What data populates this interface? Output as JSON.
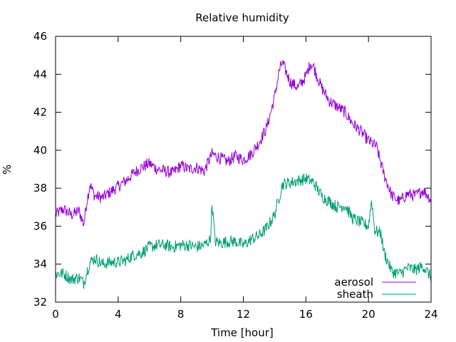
{
  "chart_data": {
    "type": "line",
    "title": "Relative humidity",
    "xlabel": "Time [hour]",
    "ylabel": "%",
    "xlim": [
      0,
      24
    ],
    "ylim": [
      32,
      46
    ],
    "xticks": [
      0,
      4,
      8,
      12,
      16,
      20,
      24
    ],
    "yticks": [
      32,
      34,
      36,
      38,
      40,
      42,
      44,
      46
    ],
    "grid": false,
    "legend_position": "bottom-right",
    "series": [
      {
        "name": "aerosol",
        "color": "#9400d3",
        "x": [
          0,
          0.5,
          1,
          1.5,
          1.8,
          2,
          2.2,
          2.5,
          3,
          3.5,
          4,
          4.5,
          5,
          5.5,
          6,
          6.5,
          7,
          7.5,
          8,
          8.5,
          9,
          9.5,
          10,
          10.5,
          11,
          11.5,
          12,
          12.5,
          13,
          13.5,
          14,
          14.3,
          14.5,
          14.8,
          15,
          15.5,
          16,
          16.3,
          16.5,
          16.8,
          17,
          17.5,
          18,
          18.5,
          19,
          19.5,
          20,
          20.5,
          21,
          21.5,
          22,
          22.5,
          23,
          23.5,
          24
        ],
        "y": [
          36.6,
          36.9,
          36.6,
          36.8,
          36.1,
          37.3,
          38.2,
          37.6,
          37.5,
          37.8,
          38.1,
          38.4,
          38.8,
          39.1,
          39.3,
          39.0,
          38.9,
          38.8,
          39.2,
          39.0,
          39.1,
          38.9,
          39.8,
          39.6,
          39.4,
          39.7,
          39.5,
          39.8,
          40.4,
          41.2,
          42.8,
          44.2,
          44.6,
          44.0,
          43.6,
          43.3,
          43.9,
          44.6,
          44.4,
          43.7,
          43.3,
          42.6,
          42.3,
          42.0,
          41.4,
          41.0,
          40.5,
          40.2,
          38.7,
          37.6,
          37.3,
          37.7,
          37.6,
          37.9,
          37.4
        ]
      },
      {
        "name": "sheath",
        "color": "#009e73",
        "x": [
          0,
          0.5,
          1,
          1.5,
          1.8,
          2,
          2.2,
          2.5,
          3,
          3.5,
          4,
          4.5,
          5,
          5.5,
          6,
          6.5,
          7,
          7.5,
          8,
          8.5,
          9,
          9.5,
          9.9,
          10,
          10.2,
          10.5,
          11,
          11.5,
          12,
          12.5,
          13,
          13.5,
          14,
          14.5,
          15,
          15.5,
          16,
          16.5,
          17,
          17.5,
          18,
          18.5,
          19,
          19.5,
          20,
          20.2,
          20.4,
          20.8,
          21,
          21.5,
          22,
          22.5,
          23,
          23.5,
          24
        ],
        "y": [
          33.5,
          33.5,
          33.2,
          33.3,
          33.0,
          33.6,
          34.1,
          34.3,
          34.0,
          34.1,
          34.1,
          34.2,
          34.5,
          34.6,
          34.9,
          35.0,
          35.0,
          34.9,
          35.0,
          35.0,
          34.9,
          35.0,
          35.3,
          37.2,
          35.2,
          35.1,
          35.2,
          35.2,
          35.0,
          35.3,
          35.5,
          35.9,
          36.6,
          38.2,
          38.3,
          38.4,
          38.5,
          38.3,
          37.6,
          37.3,
          37.0,
          37.1,
          36.4,
          36.2,
          36.0,
          37.4,
          35.8,
          35.6,
          34.6,
          33.6,
          33.5,
          33.8,
          33.7,
          33.9,
          33.3
        ]
      }
    ]
  }
}
